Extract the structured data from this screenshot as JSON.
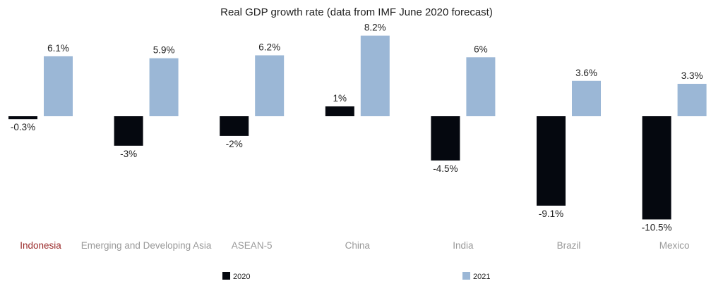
{
  "chart_data": {
    "type": "bar",
    "title": "Real GDP growth rate (data from IMF June 2020 forecast)",
    "categories": [
      "Indonesia",
      "Emerging and Developing Asia",
      "ASEAN-5",
      "China",
      "India",
      "Brazil",
      "Mexico"
    ],
    "highlight_category": "Indonesia",
    "series": [
      {
        "name": "2020",
        "values": [
          -0.3,
          -3,
          -2,
          1,
          -4.5,
          -9.1,
          -10.5
        ],
        "labels": [
          "-0.3%",
          "-3%",
          "-2%",
          "1%",
          "-4.5%",
          "-9.1%",
          "-10.5%"
        ],
        "color": "#05080f"
      },
      {
        "name": "2021",
        "values": [
          6.1,
          5.9,
          6.2,
          8.2,
          6,
          3.6,
          3.3
        ],
        "labels": [
          "6.1%",
          "5.9%",
          "6.2%",
          "8.2%",
          "6%",
          "3.6%",
          "3.3%"
        ],
        "color": "#9bb7d6"
      }
    ],
    "ylim": [
      -10.5,
      8.2
    ],
    "grid": false,
    "legend": "bottom",
    "colors": {
      "highlight_label": "#9b2b2b",
      "category_label": "#999999",
      "text": "#222222"
    }
  }
}
